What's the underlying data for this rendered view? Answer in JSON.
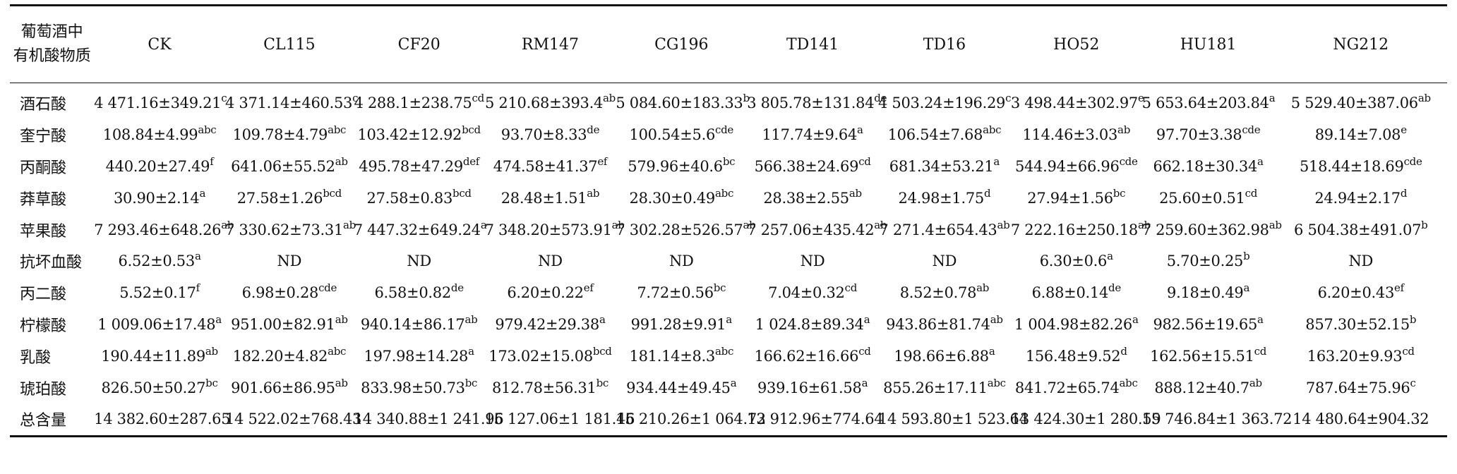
{
  "table": {
    "corner_header": [
      "葡萄酒中",
      "有机酸物质"
    ],
    "columns": [
      "CK",
      "CL115",
      "CF20",
      "RM147",
      "CG196",
      "TD141",
      "TD16",
      "HO52",
      "HU181",
      "NG212"
    ],
    "rows": [
      {
        "name": "酒石酸",
        "cells": [
          {
            "v": "4 471.16±349.21",
            "s": "c"
          },
          {
            "v": "4 371.14±460.53",
            "s": "c"
          },
          {
            "v": "4 288.1±238.75",
            "s": "cd"
          },
          {
            "v": "5 210.68±393.4",
            "s": "ab"
          },
          {
            "v": "5 084.60±183.33",
            "s": "b"
          },
          {
            "v": "3 805.78±131.84",
            "s": "de"
          },
          {
            "v": "4 503.24±196.29",
            "s": "c"
          },
          {
            "v": "3 498.44±302.97",
            "s": "e"
          },
          {
            "v": "5 653.64±203.84",
            "s": "a"
          },
          {
            "v": "5 529.40±387.06",
            "s": "ab"
          }
        ]
      },
      {
        "name": "奎宁酸",
        "cells": [
          {
            "v": "108.84±4.99",
            "s": "abc"
          },
          {
            "v": "109.78±4.79",
            "s": "abc"
          },
          {
            "v": "103.42±12.92",
            "s": "bcd"
          },
          {
            "v": "93.70±8.33",
            "s": "de"
          },
          {
            "v": "100.54±5.6",
            "s": "cde"
          },
          {
            "v": "117.74±9.64",
            "s": "a"
          },
          {
            "v": "106.54±7.68",
            "s": "abc"
          },
          {
            "v": "114.46±3.03",
            "s": "ab"
          },
          {
            "v": "97.70±3.38",
            "s": "cde"
          },
          {
            "v": "89.14±7.08",
            "s": "e"
          }
        ]
      },
      {
        "name": "丙酮酸",
        "cells": [
          {
            "v": "440.20±27.49",
            "s": "f"
          },
          {
            "v": "641.06±55.52",
            "s": "ab"
          },
          {
            "v": "495.78±47.29",
            "s": "def"
          },
          {
            "v": "474.58±41.37",
            "s": "ef"
          },
          {
            "v": "579.96±40.6",
            "s": "bc"
          },
          {
            "v": "566.38±24.69",
            "s": "cd"
          },
          {
            "v": "681.34±53.21",
            "s": "a"
          },
          {
            "v": "544.94±66.96",
            "s": "cde"
          },
          {
            "v": "662.18±30.34",
            "s": "a"
          },
          {
            "v": "518.44±18.69",
            "s": "cde"
          }
        ]
      },
      {
        "name": "莽草酸",
        "cells": [
          {
            "v": "30.90±2.14",
            "s": "a"
          },
          {
            "v": "27.58±1.26",
            "s": "bcd"
          },
          {
            "v": "27.58±0.83",
            "s": "bcd"
          },
          {
            "v": "28.48±1.51",
            "s": "ab"
          },
          {
            "v": "28.30±0.49",
            "s": "abc"
          },
          {
            "v": "28.38±2.55",
            "s": "ab"
          },
          {
            "v": "24.98±1.75",
            "s": "d"
          },
          {
            "v": "27.94±1.56",
            "s": "bc"
          },
          {
            "v": "25.60±0.51",
            "s": "cd"
          },
          {
            "v": "24.94±2.17",
            "s": "d"
          }
        ]
      },
      {
        "name": "苹果酸",
        "cells": [
          {
            "v": "7 293.46±648.26",
            "s": "ab"
          },
          {
            "v": "7 330.62±73.31",
            "s": "ab"
          },
          {
            "v": "7 447.32±649.24",
            "s": "a"
          },
          {
            "v": "7 348.20±573.91",
            "s": "ab"
          },
          {
            "v": "7 302.28±526.57",
            "s": "ab"
          },
          {
            "v": "7 257.06±435.42",
            "s": "ab"
          },
          {
            "v": "7 271.4±654.43",
            "s": "ab"
          },
          {
            "v": "7 222.16±250.18",
            "s": "ab"
          },
          {
            "v": "7 259.60±362.98",
            "s": "ab"
          },
          {
            "v": "6 504.38±491.07",
            "s": "b"
          }
        ]
      },
      {
        "name": "抗坏血酸",
        "cells": [
          {
            "v": "6.52±0.53",
            "s": "a"
          },
          {
            "v": "ND",
            "s": ""
          },
          {
            "v": "ND",
            "s": ""
          },
          {
            "v": "ND",
            "s": ""
          },
          {
            "v": "ND",
            "s": ""
          },
          {
            "v": "ND",
            "s": ""
          },
          {
            "v": "ND",
            "s": ""
          },
          {
            "v": "6.30±0.6",
            "s": "a"
          },
          {
            "v": "5.70±0.25",
            "s": "b"
          },
          {
            "v": "ND",
            "s": ""
          }
        ]
      },
      {
        "name": "丙二酸",
        "cells": [
          {
            "v": "5.52±0.17",
            "s": "f"
          },
          {
            "v": "6.98±0.28",
            "s": "cde"
          },
          {
            "v": "6.58±0.82",
            "s": "de"
          },
          {
            "v": "6.20±0.22",
            "s": "ef"
          },
          {
            "v": "7.72±0.56",
            "s": "bc"
          },
          {
            "v": "7.04±0.32",
            "s": "cd"
          },
          {
            "v": "8.52±0.78",
            "s": "ab"
          },
          {
            "v": "6.88±0.14",
            "s": "de"
          },
          {
            "v": "9.18±0.49",
            "s": "a"
          },
          {
            "v": "6.20±0.43",
            "s": "ef"
          }
        ]
      },
      {
        "name": "柠檬酸",
        "cells": [
          {
            "v": "1 009.06±17.48",
            "s": "a"
          },
          {
            "v": "951.00±82.91",
            "s": "ab"
          },
          {
            "v": "940.14±86.17",
            "s": "ab"
          },
          {
            "v": "979.42±29.38",
            "s": "a"
          },
          {
            "v": "991.28±9.91",
            "s": "a"
          },
          {
            "v": "1 024.8±89.34",
            "s": "a"
          },
          {
            "v": "943.86±81.74",
            "s": "ab"
          },
          {
            "v": "1 004.98±82.26",
            "s": "a"
          },
          {
            "v": "982.56±19.65",
            "s": "a"
          },
          {
            "v": "857.30±52.15",
            "s": "b"
          }
        ]
      },
      {
        "name": "乳酸",
        "cells": [
          {
            "v": "190.44±11.89",
            "s": "ab"
          },
          {
            "v": "182.20±4.82",
            "s": "abc"
          },
          {
            "v": "197.98±14.28",
            "s": "a"
          },
          {
            "v": "173.02±15.08",
            "s": "bcd"
          },
          {
            "v": "181.14±8.3",
            "s": "abc"
          },
          {
            "v": "166.62±16.66",
            "s": "cd"
          },
          {
            "v": "198.66±6.88",
            "s": "a"
          },
          {
            "v": "156.48±9.52",
            "s": "d"
          },
          {
            "v": "162.56±15.51",
            "s": "cd"
          },
          {
            "v": "163.20±9.93",
            "s": "cd"
          }
        ]
      },
      {
        "name": "琥珀酸",
        "cells": [
          {
            "v": "826.50±50.27",
            "s": "bc"
          },
          {
            "v": "901.66±86.95",
            "s": "ab"
          },
          {
            "v": "833.98±50.73",
            "s": "bc"
          },
          {
            "v": "812.78±56.31",
            "s": "bc"
          },
          {
            "v": "934.44±49.45",
            "s": "a"
          },
          {
            "v": "939.16±61.58",
            "s": "a"
          },
          {
            "v": "855.26±17.11",
            "s": "abc"
          },
          {
            "v": "841.72±65.74",
            "s": "abc"
          },
          {
            "v": "888.12±40.7",
            "s": "ab"
          },
          {
            "v": "787.64±75.96",
            "s": "c"
          }
        ]
      },
      {
        "name": "总含量",
        "cells": [
          {
            "v": "14 382.60±287.65",
            "s": ""
          },
          {
            "v": "14 522.02±768.43",
            "s": ""
          },
          {
            "v": "14 340.88±1 241.96",
            "s": ""
          },
          {
            "v": "15 127.06±1 181.46",
            "s": ""
          },
          {
            "v": "15 210.26±1 064.72",
            "s": ""
          },
          {
            "v": "13 912.96±774.64",
            "s": ""
          },
          {
            "v": "14 593.80±1 523.64",
            "s": ""
          },
          {
            "v": "13 424.30±1 280.59",
            "s": ""
          },
          {
            "v": "15 746.84±1 363.72",
            "s": ""
          },
          {
            "v": "14 480.64±904.32",
            "s": ""
          }
        ]
      }
    ]
  }
}
